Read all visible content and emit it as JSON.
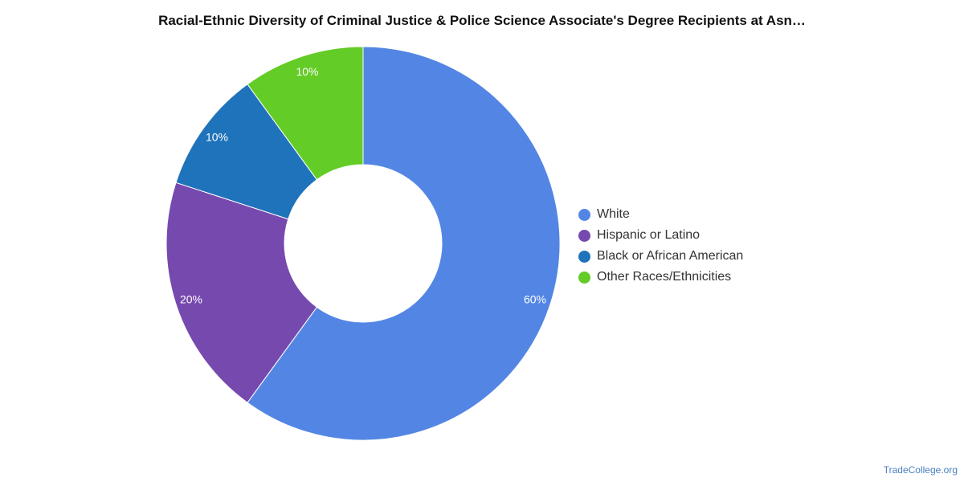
{
  "credit": "TradeCollege.org",
  "chart_data": {
    "type": "pie",
    "donut": true,
    "title": "Racial-Ethnic Diversity of Criminal Justice & Police Science Associate's Degree Recipients at Asn…",
    "categories": [
      "White",
      "Hispanic or Latino",
      "Black or African American",
      "Other Races/Ethnicities"
    ],
    "values": [
      60,
      20,
      10,
      10
    ],
    "labels": [
      "60%",
      "20%",
      "10%",
      "10%"
    ],
    "colors": [
      "#5386e4",
      "#7649af",
      "#1f73bb",
      "#64cc27"
    ],
    "legend_position": "right"
  }
}
